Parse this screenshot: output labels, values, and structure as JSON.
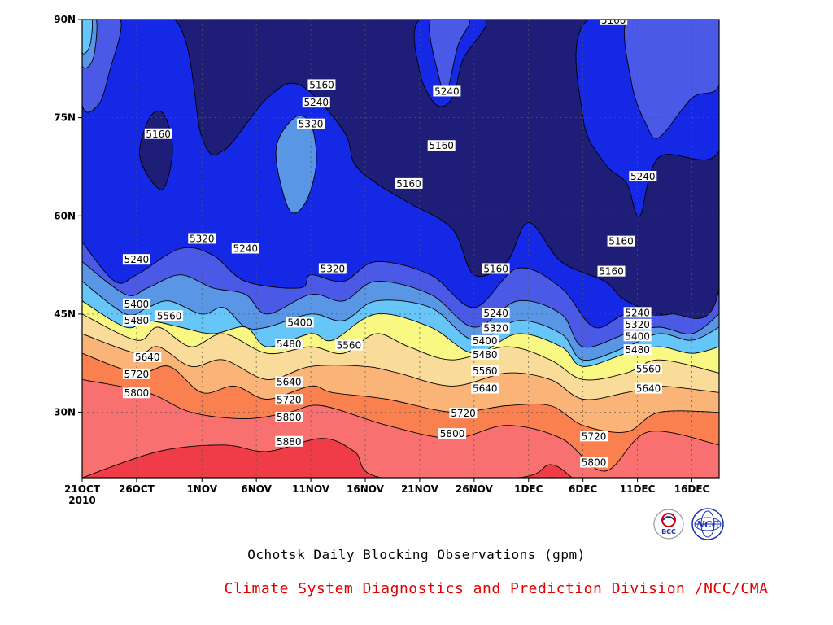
{
  "footer": {
    "title": "Ochotsk Daily Blocking Observations (gpm)",
    "credit": "Climate System Diagnostics and Prediction Division /NCC/CMA"
  },
  "logos": [
    {
      "name": "bcc-logo",
      "text": "BCC",
      "color": "#cc0000"
    },
    {
      "name": "ncc-logo",
      "text": "NCC",
      "color": "#1a2fb0"
    }
  ],
  "chart_data": {
    "type": "heatmap",
    "title": "Ochotsk Daily Blocking Observations (gpm)",
    "xlabel": "",
    "ylabel": "",
    "x_ticks": [
      {
        "label": "21OCT",
        "sub": "2010",
        "day": 0
      },
      {
        "label": "26OCT",
        "day": 5
      },
      {
        "label": "1NOV",
        "day": 11
      },
      {
        "label": "6NOV",
        "day": 16
      },
      {
        "label": "11NOV",
        "day": 21
      },
      {
        "label": "16NOV",
        "day": 26
      },
      {
        "label": "21NOV",
        "day": 31
      },
      {
        "label": "26NOV",
        "day": 36
      },
      {
        "label": "1DEC",
        "day": 41
      },
      {
        "label": "6DEC",
        "day": 46
      },
      {
        "label": "11DEC",
        "day": 51
      },
      {
        "label": "16DEC",
        "day": 56
      }
    ],
    "y_ticks": [
      {
        "label": "30N",
        "lat": 30
      },
      {
        "label": "45N",
        "lat": 45
      },
      {
        "label": "60N",
        "lat": 60
      },
      {
        "label": "75N",
        "lat": 75
      },
      {
        "label": "90N",
        "lat": 90
      }
    ],
    "xlim": [
      0,
      58.5
    ],
    "ylim": [
      20,
      90
    ],
    "grid": true,
    "levels": [
      5160,
      5240,
      5320,
      5400,
      5480,
      5560,
      5640,
      5720,
      5800,
      5880
    ],
    "fill_colors": [
      "#1e1e78",
      "#1428e6",
      "#4a5ae6",
      "#5a96e6",
      "#66c6fa",
      "#f8f882",
      "#fadc9a",
      "#fab478",
      "#fa8050",
      "#f87070",
      "#f03c46"
    ],
    "boundaries": [
      {
        "level": 5880,
        "points": [
          [
            0,
            20
          ],
          [
            7,
            24
          ],
          [
            13,
            25
          ],
          [
            17,
            24
          ],
          [
            22,
            26
          ],
          [
            25,
            24
          ],
          [
            27.5,
            20
          ],
          [
            40,
            20
          ],
          [
            43,
            22
          ],
          [
            45,
            20
          ]
        ]
      },
      {
        "level": 5800,
        "points": [
          [
            0,
            35
          ],
          [
            6,
            33
          ],
          [
            10,
            30
          ],
          [
            15,
            29
          ],
          [
            19,
            30
          ],
          [
            22,
            31
          ],
          [
            28,
            28
          ],
          [
            34,
            26
          ],
          [
            39,
            28
          ],
          [
            44,
            26
          ],
          [
            48,
            21
          ],
          [
            52,
            27
          ],
          [
            58.5,
            25
          ]
        ]
      },
      {
        "level": 5720,
        "points": [
          [
            0,
            39
          ],
          [
            5,
            36
          ],
          [
            8,
            37
          ],
          [
            11,
            33
          ],
          [
            14,
            34
          ],
          [
            17,
            32
          ],
          [
            21,
            34
          ],
          [
            23,
            33
          ],
          [
            28,
            32
          ],
          [
            34,
            30
          ],
          [
            39,
            31
          ],
          [
            43,
            31
          ],
          [
            46,
            28
          ],
          [
            50,
            27
          ],
          [
            53,
            30
          ],
          [
            58.5,
            30
          ]
        ]
      },
      {
        "level": 5640,
        "points": [
          [
            0,
            42
          ],
          [
            5,
            39
          ],
          [
            7,
            40
          ],
          [
            10,
            37
          ],
          [
            13,
            38
          ],
          [
            17,
            35
          ],
          [
            21,
            37
          ],
          [
            26,
            37
          ],
          [
            29,
            36
          ],
          [
            34,
            34
          ],
          [
            39,
            36
          ],
          [
            43,
            35
          ],
          [
            46,
            32
          ],
          [
            50,
            33
          ],
          [
            53,
            34
          ],
          [
            58.5,
            33
          ]
        ]
      },
      {
        "level": 5560,
        "points": [
          [
            0,
            45
          ],
          [
            5,
            41
          ],
          [
            7,
            43
          ],
          [
            10,
            40
          ],
          [
            13,
            42
          ],
          [
            17,
            39
          ],
          [
            21,
            40
          ],
          [
            24,
            39
          ],
          [
            27,
            42
          ],
          [
            30,
            40
          ],
          [
            34,
            38
          ],
          [
            39,
            40
          ],
          [
            43,
            38
          ],
          [
            46,
            35
          ],
          [
            50,
            36
          ],
          [
            53,
            38
          ],
          [
            58.5,
            36
          ]
        ]
      },
      {
        "level": 5480,
        "points": [
          [
            0,
            47
          ],
          [
            4,
            43
          ],
          [
            6,
            44
          ],
          [
            9,
            43
          ],
          [
            12,
            42
          ],
          [
            15,
            43
          ],
          [
            17,
            40
          ],
          [
            21,
            42
          ],
          [
            23,
            41
          ],
          [
            27,
            45
          ],
          [
            32,
            43
          ],
          [
            36,
            39
          ],
          [
            40,
            42
          ],
          [
            44,
            40
          ],
          [
            46,
            37
          ],
          [
            50,
            39
          ],
          [
            53,
            40
          ],
          [
            56,
            39
          ],
          [
            58.5,
            40
          ]
        ]
      },
      {
        "level": 5400,
        "points": [
          [
            0,
            50
          ],
          [
            4,
            45
          ],
          [
            6,
            46
          ],
          [
            8,
            47
          ],
          [
            11,
            45
          ],
          [
            13,
            46
          ],
          [
            15,
            43
          ],
          [
            17,
            43
          ],
          [
            21,
            45
          ],
          [
            24,
            44
          ],
          [
            27,
            47
          ],
          [
            32,
            46
          ],
          [
            36,
            41
          ],
          [
            40,
            44
          ],
          [
            44,
            42
          ],
          [
            46,
            38
          ],
          [
            50,
            40
          ],
          [
            53,
            42
          ],
          [
            56,
            41
          ],
          [
            58.5,
            43
          ]
        ]
      },
      {
        "level": 5320,
        "points": [
          [
            0,
            53
          ],
          [
            4,
            48
          ],
          [
            6,
            49
          ],
          [
            9,
            51
          ],
          [
            12,
            49
          ],
          [
            15,
            48
          ],
          [
            17,
            45
          ],
          [
            21,
            48
          ],
          [
            24,
            47
          ],
          [
            27,
            50
          ],
          [
            32,
            48
          ],
          [
            36,
            43
          ],
          [
            40,
            47
          ],
          [
            44,
            45
          ],
          [
            46,
            40
          ],
          [
            50,
            42
          ],
          [
            53,
            43
          ],
          [
            56,
            42
          ],
          [
            58.5,
            45
          ]
        ]
      },
      {
        "level": 5240,
        "points": [
          [
            0,
            56
          ],
          [
            3,
            50
          ],
          [
            5,
            51
          ],
          [
            9,
            55
          ],
          [
            12,
            54
          ],
          [
            15,
            50
          ],
          [
            20,
            49
          ],
          [
            21,
            51
          ],
          [
            24,
            50
          ],
          [
            27,
            53
          ],
          [
            32,
            51
          ],
          [
            36,
            46
          ],
          [
            40,
            52
          ],
          [
            44,
            49
          ],
          [
            47,
            43
          ],
          [
            50,
            45
          ],
          [
            54,
            45
          ],
          [
            58.5,
            48
          ]
        ]
      },
      {
        "level": 5160,
        "points": [
          [
            0,
            90
          ],
          [
            8.5,
            90
          ],
          [
            11,
            72
          ],
          [
            13,
            70
          ],
          [
            17,
            78
          ],
          [
            20,
            80
          ],
          [
            24,
            73
          ],
          [
            25,
            68
          ],
          [
            27,
            65
          ],
          [
            30,
            62
          ],
          [
            34,
            58
          ],
          [
            36,
            51
          ],
          [
            39,
            53
          ],
          [
            41,
            59
          ],
          [
            44,
            53
          ],
          [
            48,
            50
          ],
          [
            50,
            47
          ],
          [
            54,
            45
          ],
          [
            58.5,
            49
          ],
          [
            58.5,
            90
          ]
        ]
      }
    ],
    "islands": [
      {
        "level": 5160,
        "fill_index": 0,
        "points": [
          [
            5.3,
            69
          ],
          [
            6.2,
            75
          ],
          [
            7.5,
            75.5
          ],
          [
            8.3,
            70
          ],
          [
            7.3,
            64
          ]
        ]
      },
      {
        "level": 5320,
        "fill_index": 3,
        "points": [
          [
            17.8,
            70
          ],
          [
            19.5,
            75
          ],
          [
            21,
            74
          ],
          [
            21.5,
            68
          ],
          [
            20.5,
            62
          ],
          [
            19,
            61
          ]
        ]
      },
      {
        "level": 5160,
        "fill_index": 1,
        "points": [
          [
            31,
            90
          ],
          [
            31,
            82
          ],
          [
            32.5,
            77
          ],
          [
            34,
            78
          ],
          [
            35,
            84
          ],
          [
            37,
            90
          ]
        ]
      },
      {
        "level": 5160,
        "fill_index": 2,
        "points": [
          [
            32,
            90
          ],
          [
            32.8,
            81
          ],
          [
            33.5,
            79
          ],
          [
            34.5,
            86
          ],
          [
            35.5,
            90
          ]
        ]
      },
      {
        "level": 5160,
        "fill_index": 1,
        "points": [
          [
            46.5,
            90
          ],
          [
            46,
            75
          ],
          [
            48,
            68
          ],
          [
            50,
            65
          ],
          [
            51.2,
            60
          ],
          [
            53,
            69
          ],
          [
            58.5,
            70
          ],
          [
            58.5,
            90
          ]
        ]
      },
      {
        "level": 5240,
        "fill_index": 2,
        "points": [
          [
            50,
            90
          ],
          [
            50.5,
            80
          ],
          [
            51.8,
            74
          ],
          [
            53,
            72
          ],
          [
            56,
            78
          ],
          [
            58.5,
            80
          ],
          [
            58.5,
            90
          ],
          [
            54,
            90
          ]
        ]
      },
      {
        "level": 5160,
        "fill_index": 2,
        "points": [
          [
            0,
            90
          ],
          [
            0,
            77
          ],
          [
            1.5,
            77
          ],
          [
            2.5,
            82
          ],
          [
            3.5,
            90
          ]
        ]
      },
      {
        "level": 5160,
        "fill_index": 3,
        "points": [
          [
            0,
            90
          ],
          [
            0,
            83
          ],
          [
            1,
            84
          ],
          [
            1.3,
            90
          ]
        ]
      },
      {
        "level": 5160,
        "fill_index": 4,
        "points": [
          [
            0,
            90
          ],
          [
            0,
            85
          ],
          [
            0.7,
            86
          ],
          [
            0.9,
            90
          ]
        ]
      }
    ],
    "contour_labels": [
      {
        "text": "5160",
        "x": 7,
        "y": 72.5
      },
      {
        "text": "5160",
        "x": 22,
        "y": 80
      },
      {
        "text": "5240",
        "x": 21.5,
        "y": 77.3
      },
      {
        "text": "5320",
        "x": 21,
        "y": 74
      },
      {
        "text": "5240",
        "x": 33.5,
        "y": 79
      },
      {
        "text": "5160",
        "x": 33,
        "y": 70.7
      },
      {
        "text": "5160",
        "x": 30,
        "y": 64.9
      },
      {
        "text": "5160",
        "x": 48.8,
        "y": 89.9
      },
      {
        "text": "5240",
        "x": 51.5,
        "y": 66
      },
      {
        "text": "5160",
        "x": 49.5,
        "y": 56.1
      },
      {
        "text": "5160",
        "x": 48.6,
        "y": 51.5
      },
      {
        "text": "5160",
        "x": 38,
        "y": 51.9
      },
      {
        "text": "5240",
        "x": 5,
        "y": 53.3
      },
      {
        "text": "5320",
        "x": 11,
        "y": 56.5
      },
      {
        "text": "5240",
        "x": 15,
        "y": 55
      },
      {
        "text": "5320",
        "x": 23,
        "y": 51.9
      },
      {
        "text": "5400",
        "x": 5,
        "y": 46.5
      },
      {
        "text": "5480",
        "x": 5,
        "y": 44
      },
      {
        "text": "5560",
        "x": 8,
        "y": 44.7
      },
      {
        "text": "5400",
        "x": 20,
        "y": 43.7
      },
      {
        "text": "5480",
        "x": 19,
        "y": 40.4
      },
      {
        "text": "5560",
        "x": 24.5,
        "y": 40.2
      },
      {
        "text": "5640",
        "x": 6,
        "y": 38.4
      },
      {
        "text": "5720",
        "x": 5,
        "y": 35.8
      },
      {
        "text": "5800",
        "x": 5,
        "y": 32.9
      },
      {
        "text": "5640",
        "x": 19,
        "y": 34.6
      },
      {
        "text": "5720",
        "x": 19,
        "y": 31.9
      },
      {
        "text": "5800",
        "x": 19,
        "y": 29.2
      },
      {
        "text": "5880",
        "x": 19,
        "y": 25.5
      },
      {
        "text": "5800",
        "x": 34,
        "y": 26.7
      },
      {
        "text": "5720",
        "x": 35,
        "y": 29.8
      },
      {
        "text": "5640",
        "x": 37,
        "y": 33.6
      },
      {
        "text": "5560",
        "x": 37,
        "y": 36.3
      },
      {
        "text": "5480",
        "x": 37,
        "y": 38.8
      },
      {
        "text": "5400",
        "x": 37,
        "y": 40.9
      },
      {
        "text": "5320",
        "x": 38,
        "y": 42.8
      },
      {
        "text": "5240",
        "x": 38,
        "y": 45.1
      },
      {
        "text": "5720",
        "x": 47,
        "y": 26.3
      },
      {
        "text": "5800",
        "x": 47,
        "y": 22.3
      },
      {
        "text": "5640",
        "x": 52,
        "y": 33.6
      },
      {
        "text": "5560",
        "x": 52,
        "y": 36.6
      },
      {
        "text": "5480",
        "x": 51,
        "y": 39.5
      },
      {
        "text": "5400",
        "x": 51,
        "y": 41.6
      },
      {
        "text": "5320",
        "x": 51,
        "y": 43.4
      },
      {
        "text": "5240",
        "x": 51,
        "y": 45.2
      }
    ]
  }
}
